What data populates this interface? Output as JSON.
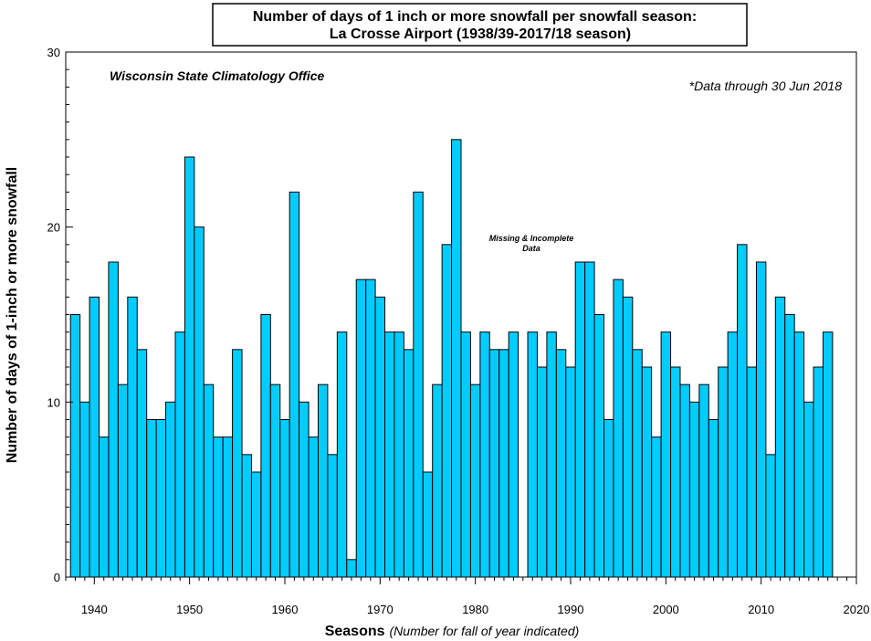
{
  "chart_data": {
    "type": "bar",
    "title_line1": "Number of days of 1 inch or more snowfall per snowfall season:",
    "title_line2": "La Crosse Airport (1938/39-2017/18 season)",
    "xlabel": "Seasons",
    "xlabel_note": "(Number for fall of year indicated)",
    "ylabel": "Number of days of 1-inch or more snowfall",
    "source": "Wisconsin State Climatology Office",
    "footnote": "*Data through 30 Jun 2018",
    "missing_note_line1": "Missing & Incomplete",
    "missing_note_line2": "Data",
    "ylim": [
      0,
      30
    ],
    "xlim": [
      1937,
      2020
    ],
    "y_ticks": [
      "0",
      "10",
      "20",
      "30"
    ],
    "x_ticks": [
      "1940",
      "1950",
      "1960",
      "1970",
      "1980",
      "1990",
      "2000",
      "2010",
      "2020"
    ],
    "bar_color": "#00ccff",
    "x": [
      1938,
      1939,
      1940,
      1941,
      1942,
      1943,
      1944,
      1945,
      1946,
      1947,
      1948,
      1949,
      1950,
      1951,
      1952,
      1953,
      1954,
      1955,
      1956,
      1957,
      1958,
      1959,
      1960,
      1961,
      1962,
      1963,
      1964,
      1965,
      1966,
      1967,
      1968,
      1969,
      1970,
      1971,
      1972,
      1973,
      1974,
      1975,
      1976,
      1977,
      1978,
      1979,
      1980,
      1981,
      1982,
      1983,
      1984,
      1986,
      1987,
      1988,
      1989,
      1990,
      1991,
      1992,
      1993,
      1994,
      1995,
      1996,
      1997,
      1998,
      1999,
      2000,
      2001,
      2002,
      2003,
      2004,
      2005,
      2006,
      2007,
      2008,
      2009,
      2010,
      2011,
      2012,
      2013,
      2014,
      2015,
      2016,
      2017
    ],
    "values": [
      15,
      10,
      16,
      8,
      18,
      11,
      16,
      13,
      9,
      9,
      10,
      14,
      24,
      20,
      11,
      8,
      8,
      13,
      7,
      6,
      15,
      11,
      9,
      22,
      10,
      8,
      11,
      7,
      14,
      1,
      17,
      17,
      16,
      14,
      14,
      13,
      22,
      6,
      11,
      19,
      25,
      14,
      11,
      14,
      13,
      13,
      14,
      14,
      12,
      14,
      13,
      12,
      18,
      18,
      15,
      9,
      17,
      16,
      13,
      12,
      8,
      14,
      12,
      11,
      10,
      11,
      9,
      12,
      14,
      19,
      12,
      18,
      7,
      16,
      15,
      14,
      10,
      12,
      14
    ]
  }
}
